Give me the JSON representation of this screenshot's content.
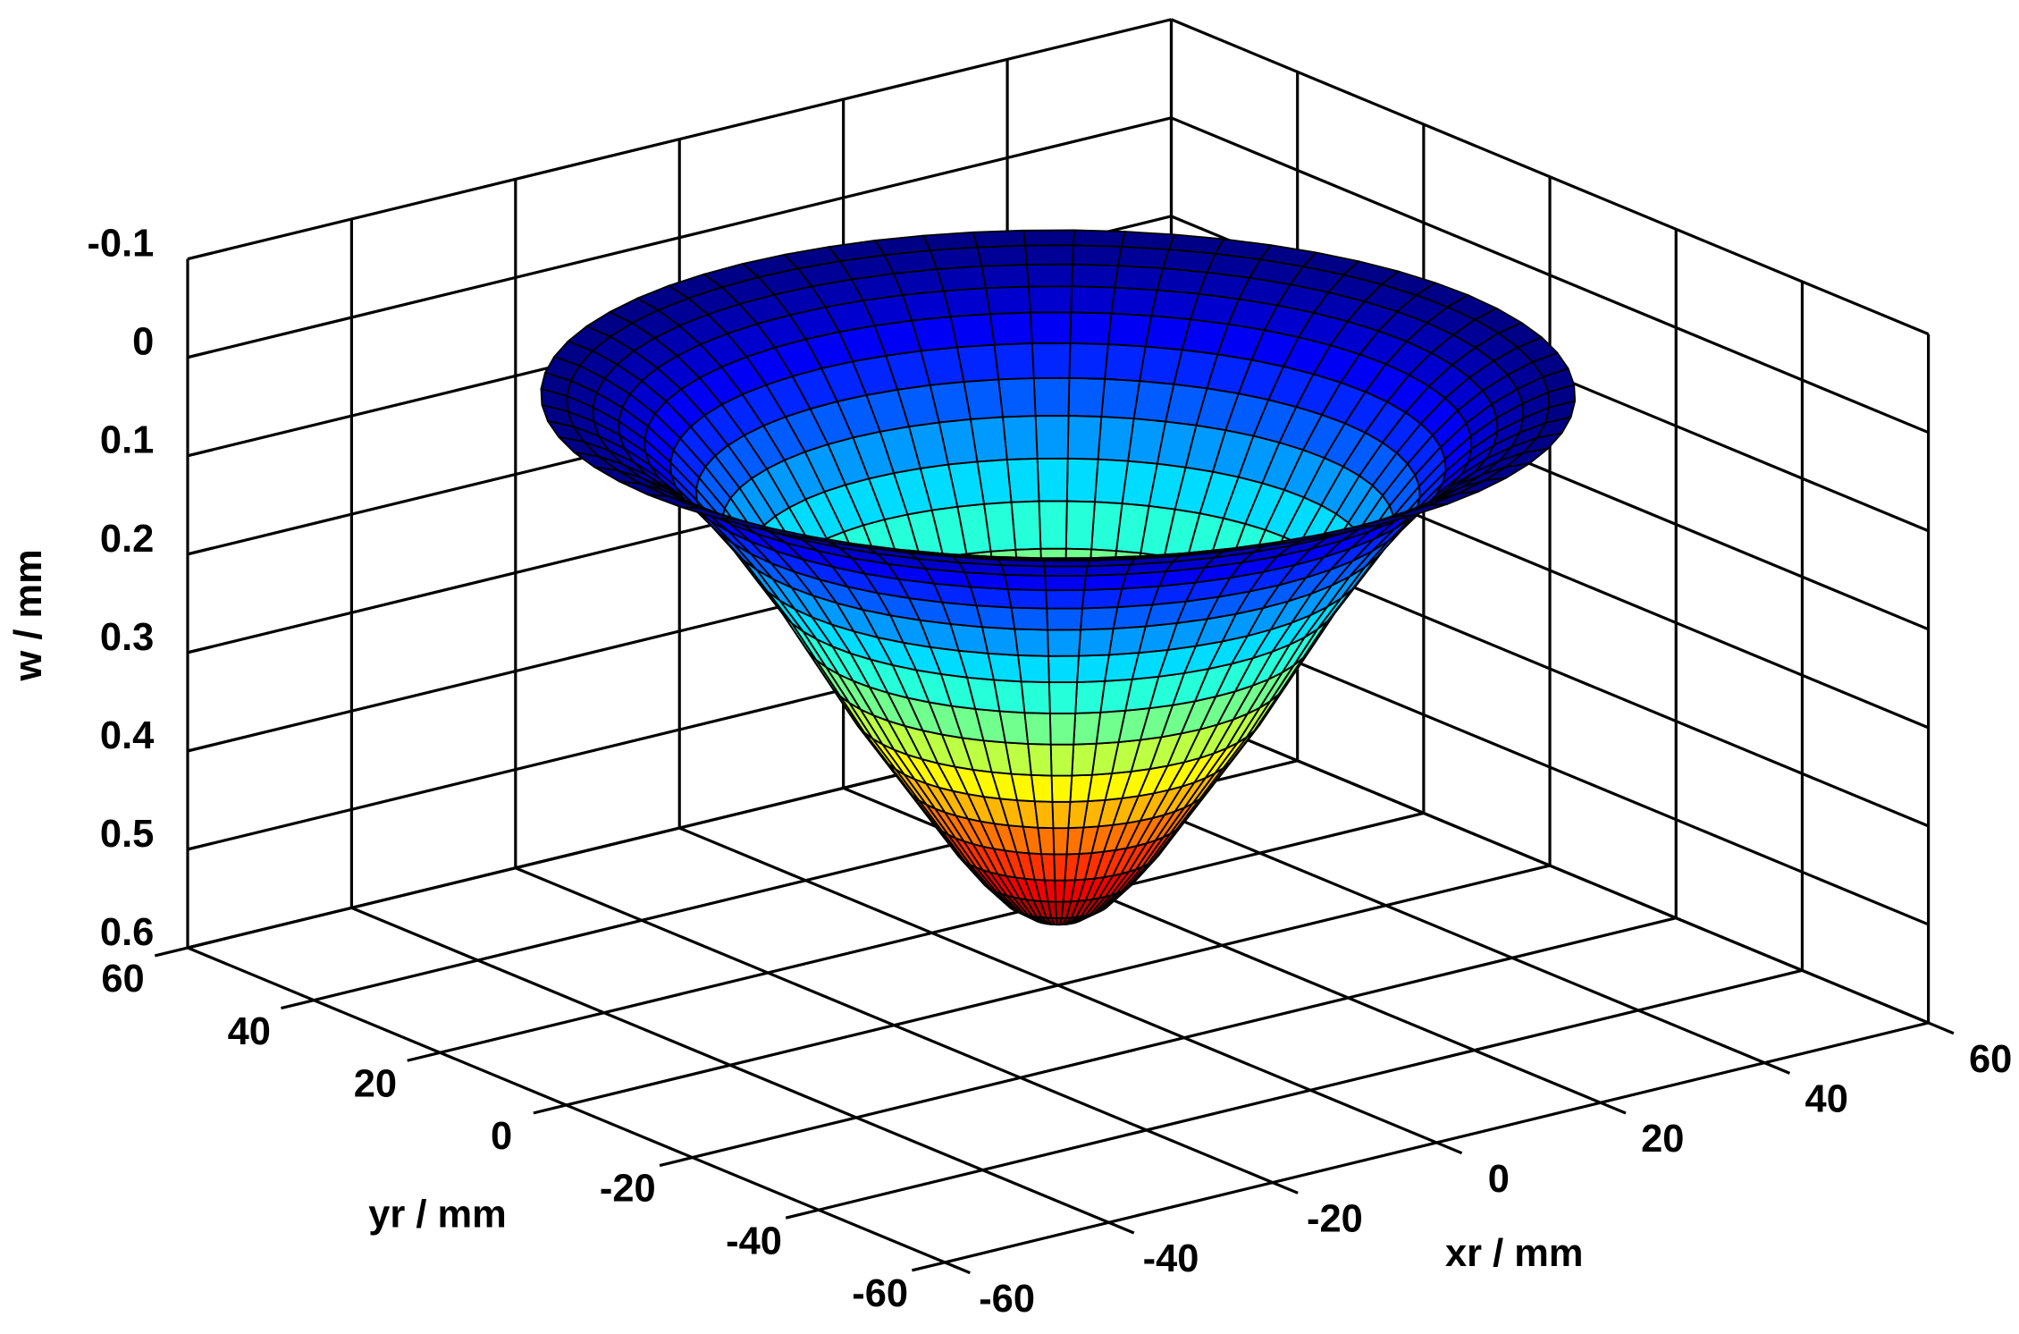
{
  "chart_data": {
    "type": "surface3d",
    "xlabel": "xr / mm",
    "ylabel": "yr / mm",
    "zlabel": "w / mm",
    "xlim": [
      -60,
      60
    ],
    "ylim": [
      -60,
      60
    ],
    "zlim": [
      -0.1,
      0.6
    ],
    "zdir": "reverse",
    "xticks": [
      -60,
      -40,
      -20,
      0,
      20,
      40,
      60
    ],
    "yticks": [
      -60,
      -40,
      -20,
      0,
      20,
      40,
      60
    ],
    "zticks": [
      -0.1,
      0,
      0.1,
      0.2,
      0.3,
      0.4,
      0.5,
      0.6
    ],
    "grid": true,
    "colormap": "jet",
    "surface": {
      "r": [
        0,
        2.5,
        5,
        7.5,
        10,
        12.5,
        15,
        17.5,
        20,
        22.5,
        25,
        27.5,
        30,
        32.5,
        35,
        37.5,
        40,
        42.5,
        45,
        47.5,
        50
      ],
      "w": [
        0.535,
        0.53,
        0.515,
        0.49,
        0.46,
        0.425,
        0.39,
        0.355,
        0.32,
        0.28,
        0.24,
        0.2,
        0.165,
        0.13,
        0.1,
        0.073,
        0.05,
        0.032,
        0.018,
        0.007,
        0
      ]
    }
  }
}
